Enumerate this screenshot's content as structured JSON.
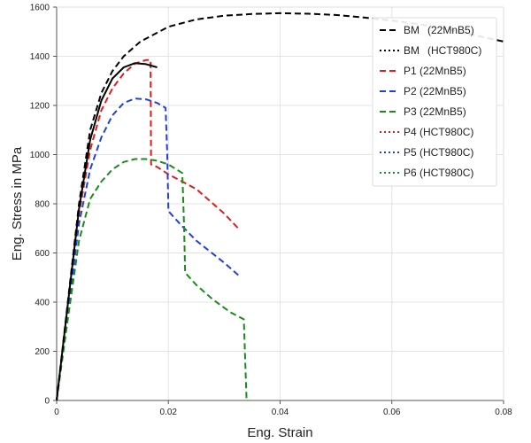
{
  "chart_data": {
    "type": "line",
    "title": "",
    "xlabel": "Eng. Strain",
    "ylabel": "Eng. Stress in MPa",
    "xlim": [
      0,
      0.08
    ],
    "ylim": [
      0,
      1600
    ],
    "x_ticks": [
      "0",
      "0.02",
      "0.04",
      "0.06",
      "0.08"
    ],
    "y_ticks": [
      "0",
      "200",
      "400",
      "600",
      "800",
      "1000",
      "1200",
      "1400",
      "1600"
    ],
    "grid": true,
    "legend_position": "top-right",
    "series": [
      {
        "name": "BM  (22MnB5)",
        "legend_label": "BM",
        "legend_suffix": "(22MnB5)",
        "color": "#000000",
        "style": "dashed",
        "points": [
          [
            0,
            0
          ],
          [
            0.002,
            400
          ],
          [
            0.004,
            800
          ],
          [
            0.006,
            1100
          ],
          [
            0.008,
            1250
          ],
          [
            0.01,
            1340
          ],
          [
            0.012,
            1400
          ],
          [
            0.015,
            1460
          ],
          [
            0.02,
            1520
          ],
          [
            0.025,
            1550
          ],
          [
            0.03,
            1565
          ],
          [
            0.035,
            1572
          ],
          [
            0.04,
            1575
          ],
          [
            0.045,
            1573
          ],
          [
            0.05,
            1568
          ],
          [
            0.055,
            1558
          ],
          [
            0.06,
            1545
          ],
          [
            0.065,
            1530
          ],
          [
            0.07,
            1510
          ],
          [
            0.08,
            1460
          ]
        ]
      },
      {
        "name": "BM  (HCT980C)",
        "legend_label": "BM",
        "legend_suffix": "(HCT980C)",
        "color": "#000000",
        "style": "dotted",
        "points": []
      },
      {
        "name": "P1 (22MnB5)",
        "legend_label": "P1 (22MnB5)",
        "color": "#e41a1c",
        "style": "dashed",
        "points": [
          [
            0,
            0
          ],
          [
            0.002,
            380
          ],
          [
            0.004,
            760
          ],
          [
            0.006,
            1020
          ],
          [
            0.008,
            1180
          ],
          [
            0.01,
            1270
          ],
          [
            0.012,
            1330
          ],
          [
            0.014,
            1370
          ],
          [
            0.016,
            1385
          ],
          [
            0.0168,
            1385
          ],
          [
            0.0169,
            960
          ],
          [
            0.018,
            950
          ],
          [
            0.02,
            920
          ],
          [
            0.025,
            860
          ],
          [
            0.03,
            760
          ],
          [
            0.0325,
            700
          ]
        ]
      },
      {
        "name": "P2 (22MnB5)",
        "legend_label": "P2 (22MnB5)",
        "color": "#1f3fe0",
        "style": "dashed",
        "points": [
          [
            0,
            0
          ],
          [
            0.002,
            360
          ],
          [
            0.004,
            720
          ],
          [
            0.006,
            940
          ],
          [
            0.008,
            1070
          ],
          [
            0.01,
            1160
          ],
          [
            0.012,
            1210
          ],
          [
            0.014,
            1228
          ],
          [
            0.016,
            1225
          ],
          [
            0.018,
            1210
          ],
          [
            0.0195,
            1190
          ],
          [
            0.0198,
            1000
          ],
          [
            0.02,
            770
          ],
          [
            0.022,
            720
          ],
          [
            0.025,
            650
          ],
          [
            0.03,
            560
          ],
          [
            0.0325,
            510
          ]
        ]
      },
      {
        "name": "P3 (22MnB5)",
        "legend_label": "P3 (22MnB5)",
        "color": "#1a8c1a",
        "style": "dashed",
        "points": [
          [
            0,
            0
          ],
          [
            0.002,
            330
          ],
          [
            0.004,
            650
          ],
          [
            0.006,
            820
          ],
          [
            0.008,
            890
          ],
          [
            0.01,
            940
          ],
          [
            0.012,
            970
          ],
          [
            0.014,
            982
          ],
          [
            0.016,
            982
          ],
          [
            0.018,
            975
          ],
          [
            0.02,
            960
          ],
          [
            0.0225,
            925
          ],
          [
            0.0228,
            720
          ],
          [
            0.023,
            520
          ],
          [
            0.025,
            470
          ],
          [
            0.028,
            410
          ],
          [
            0.031,
            360
          ],
          [
            0.0335,
            330
          ],
          [
            0.034,
            0
          ]
        ]
      },
      {
        "name": "P4 (HCT980C)",
        "legend_label": "P4 (HCT980C)",
        "color": "#e41a1c",
        "style": "dotted",
        "points": []
      },
      {
        "name": "P5 (HCT980C)",
        "legend_label": "P5 (HCT980C)",
        "color": "#1f3fe0",
        "style": "dotted",
        "points": []
      },
      {
        "name": "P6 (HCT980C)",
        "legend_label": "P6 (HCT980C)",
        "color": "#1a8c1a",
        "style": "dotted",
        "points": []
      },
      {
        "name": "",
        "legend_label": "",
        "color": "#000000",
        "style": "solid",
        "points": [
          [
            0,
            0
          ],
          [
            0.002,
            390
          ],
          [
            0.004,
            780
          ],
          [
            0.006,
            1060
          ],
          [
            0.008,
            1220
          ],
          [
            0.01,
            1310
          ],
          [
            0.012,
            1355
          ],
          [
            0.014,
            1372
          ],
          [
            0.016,
            1368
          ],
          [
            0.018,
            1355
          ]
        ]
      }
    ]
  }
}
